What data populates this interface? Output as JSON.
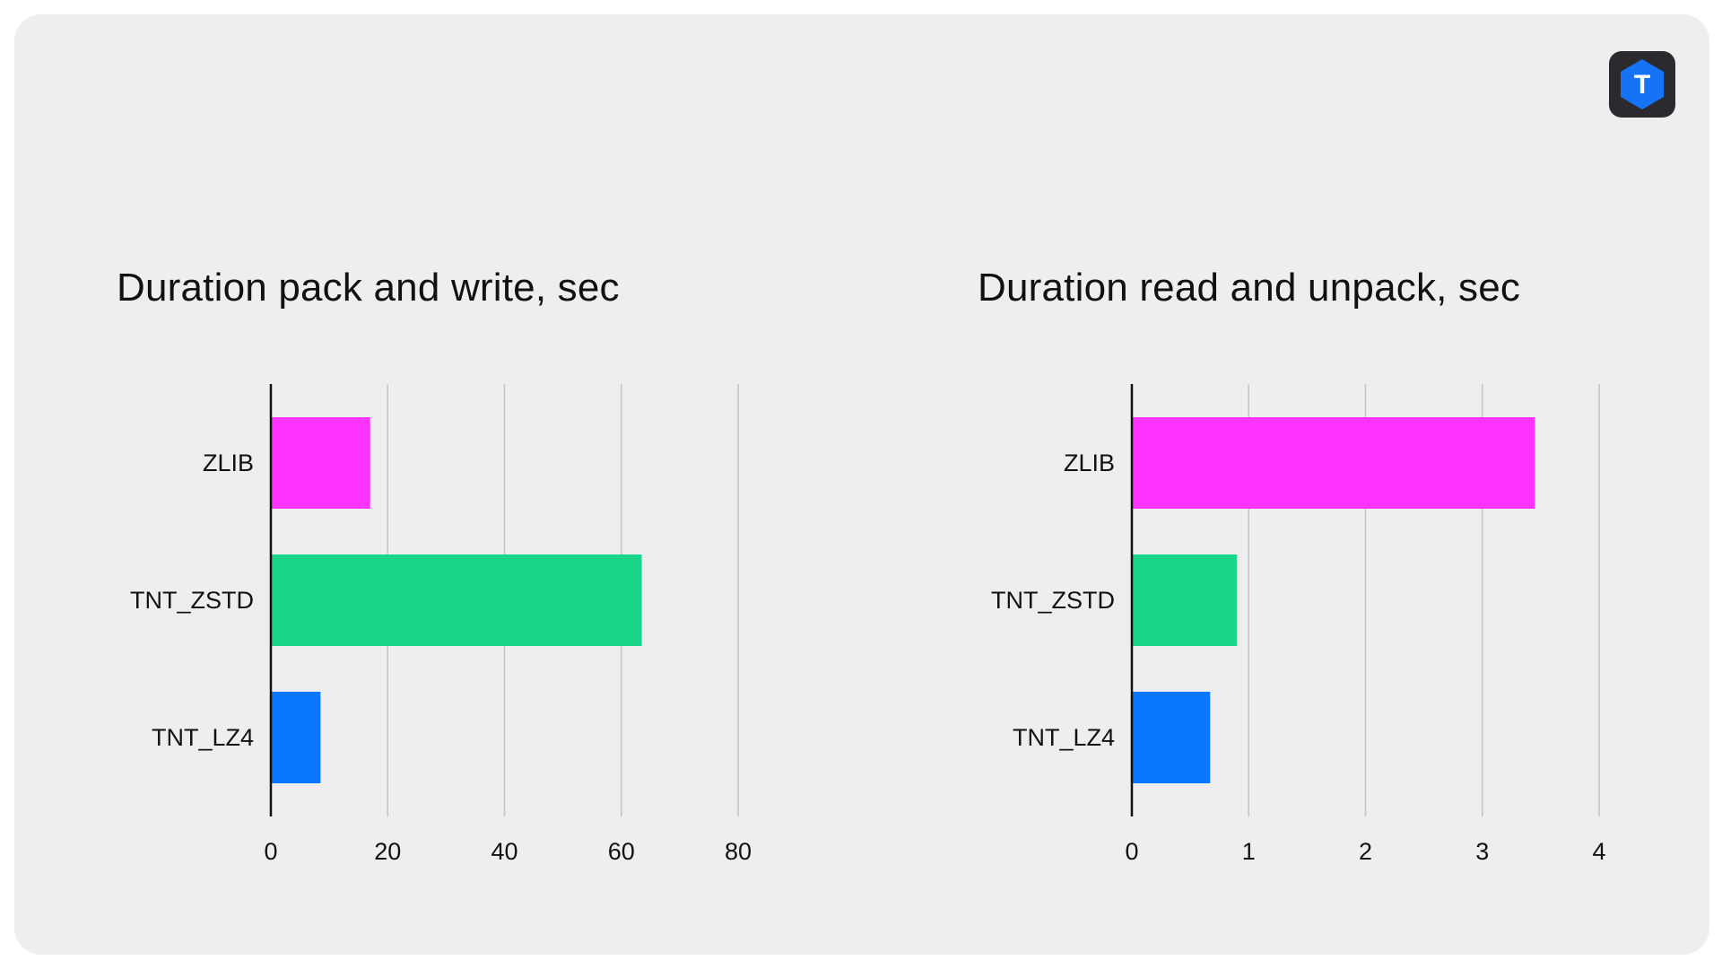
{
  "logo": {
    "icon": "tarantool-hexagon-icon",
    "letter": "T",
    "colors": {
      "tile": "#2b2b2f",
      "hexagon": "#1574f5",
      "letter": "#ffffff"
    }
  },
  "colors": {
    "card_background": "#eeeeee",
    "gridline": "#c4c4c4",
    "axis": "#111111",
    "series": {
      "ZLIB": "#ff33ff",
      "TNT_ZSTD": "#1ad68a",
      "TNT_LZ4": "#0a77ff"
    }
  },
  "chart_data": [
    {
      "type": "bar",
      "orientation": "horizontal",
      "title": "Duration pack and write, sec",
      "categories": [
        "ZLIB",
        "TNT_ZSTD",
        "TNT_LZ4"
      ],
      "values": [
        17,
        63.5,
        8.5
      ],
      "xlim": [
        0,
        80
      ],
      "xticks": [
        "0",
        "20",
        "40",
        "60",
        "80"
      ],
      "grid": true,
      "legend": "none"
    },
    {
      "type": "bar",
      "orientation": "horizontal",
      "title": "Duration read and unpack, sec",
      "categories": [
        "ZLIB",
        "TNT_ZSTD",
        "TNT_LZ4"
      ],
      "values": [
        3.45,
        0.9,
        0.67
      ],
      "xlim": [
        0,
        4
      ],
      "xticks": [
        "0",
        "1",
        "2",
        "3",
        "4"
      ],
      "grid": true,
      "legend": "none"
    }
  ]
}
